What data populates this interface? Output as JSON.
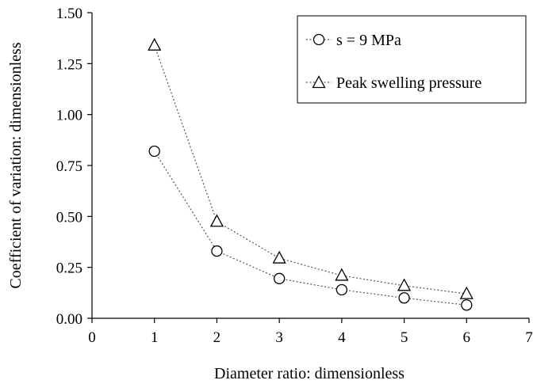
{
  "chart_data": {
    "type": "line",
    "xlabel": "Diameter ratio: dimensionless",
    "ylabel": "Coefficient of variation: dimensionless",
    "xlim": [
      0,
      7
    ],
    "ylim": [
      0,
      1.5
    ],
    "x_ticks": [
      "0",
      "1",
      "2",
      "3",
      "4",
      "5",
      "6",
      "7"
    ],
    "y_ticks": [
      "0.00",
      "0.25",
      "0.50",
      "0.75",
      "1.00",
      "1.25",
      "1.50"
    ],
    "grid": false,
    "legend_position": "top-right",
    "series": [
      {
        "name": "s = 9 MPa",
        "marker": "circle",
        "x": [
          1,
          2,
          3,
          4,
          5,
          6
        ],
        "y": [
          0.82,
          0.33,
          0.195,
          0.14,
          0.1,
          0.065
        ]
      },
      {
        "name": "Peak swelling pressure",
        "marker": "triangle",
        "x": [
          1,
          2,
          3,
          4,
          5,
          6
        ],
        "y": [
          1.34,
          0.475,
          0.295,
          0.21,
          0.16,
          0.12
        ]
      }
    ]
  }
}
